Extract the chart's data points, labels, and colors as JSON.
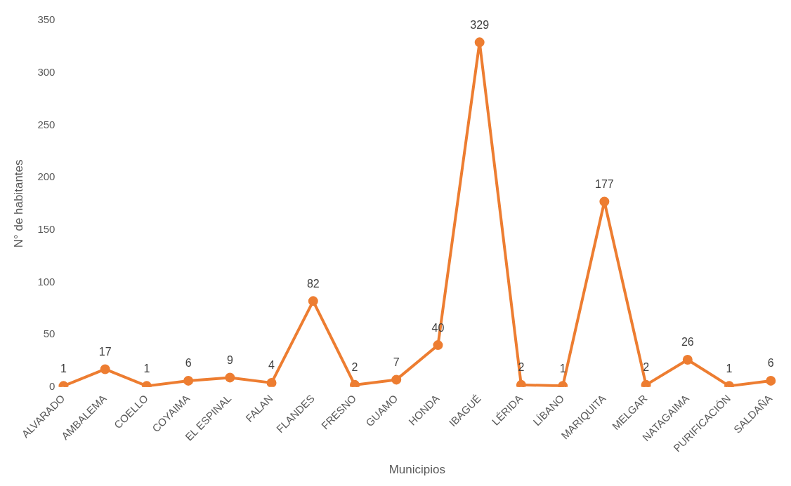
{
  "chart_data": {
    "type": "line",
    "xlabel": "Municipios",
    "ylabel": "N° de habitantes",
    "categories": [
      "ALVARADO",
      "AMBALEMA",
      "COELLO",
      "COYAIMA",
      "EL ESPINAL",
      "FALAN",
      "FLANDES",
      "FRESNO",
      "GUAMO",
      "HONDA",
      "IBAGUÉ",
      "LÉRIDA",
      "LÍBANO",
      "MARIQUITA",
      "MELGAR",
      "NATAGAIMA",
      "PURIFICACIÓN",
      "SALDAÑA"
    ],
    "series": [
      {
        "color": "#ed7d31",
        "values": [
          1,
          17,
          1,
          6,
          9,
          4,
          82,
          2,
          7,
          40,
          329,
          2,
          1,
          177,
          2,
          26,
          1,
          6
        ]
      }
    ],
    "ylim": [
      0,
      350
    ],
    "yticks": [
      0,
      50,
      100,
      150,
      200,
      250,
      300,
      350
    ],
    "grid": false,
    "legend": false,
    "marker": "circle",
    "line_style": "solid",
    "data_labels": true
  }
}
